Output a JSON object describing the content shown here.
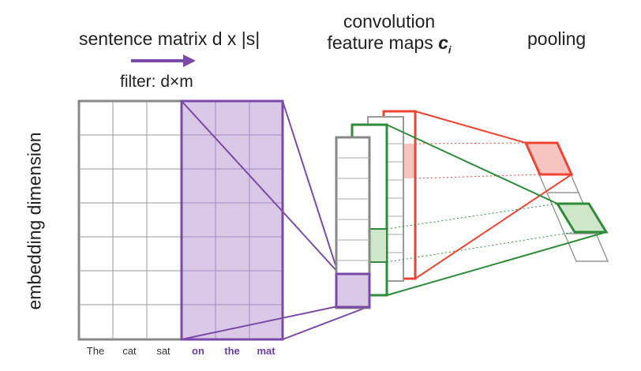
{
  "titles": {
    "sentence_matrix": "sentence matrix d x |s|",
    "convolution_line1": "convolution",
    "convolution_line2": "feature maps",
    "feature_symbol": "c",
    "feature_subscript": "i",
    "pooling": "pooling",
    "filter": "filter: d×m",
    "embedding_axis": "embedding dimension"
  },
  "words": [
    {
      "text": "The",
      "highlighted": false
    },
    {
      "text": "cat",
      "highlighted": false
    },
    {
      "text": "sat",
      "highlighted": false
    },
    {
      "text": "on",
      "highlighted": true
    },
    {
      "text": "the",
      "highlighted": true
    },
    {
      "text": "mat",
      "highlighted": true
    }
  ],
  "colors": {
    "filter": "#7b4aa8",
    "filter_fill": "#d9c8e6",
    "red_map": "#ee4433",
    "red_fill": "#f7c4bf",
    "green_map": "#2e8b3a",
    "green_fill": "#cde7c8",
    "grid": "#888888"
  }
}
